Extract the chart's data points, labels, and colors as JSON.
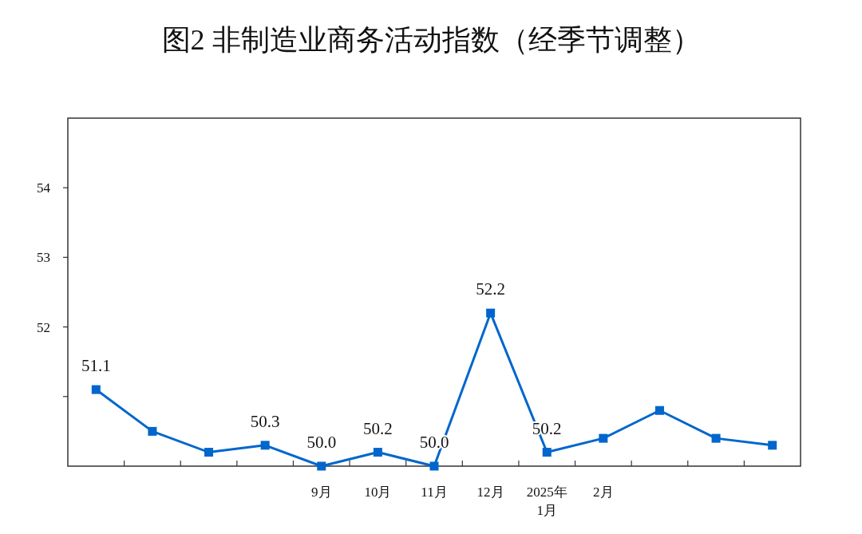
{
  "chart_data": {
    "type": "line",
    "title": "图2  非制造业商务活动指数（经季节调整）",
    "categories": [
      null,
      null,
      null,
      null,
      "9月",
      "10月",
      "11月",
      "12月",
      "2025年\n1月",
      "2月",
      null,
      null,
      null
    ],
    "values": [
      51.1,
      50.5,
      50.2,
      50.3,
      50.0,
      50.2,
      50.0,
      52.2,
      50.2,
      50.4,
      50.8,
      50.4,
      50.3
    ],
    "value_labels": [
      "51.1",
      null,
      null,
      "50.3",
      "50.0",
      "50.2",
      "50.0",
      "52.2",
      "50.2",
      null,
      null,
      null,
      null
    ],
    "color": "#0066cc",
    "marker": "square",
    "line_style": "solid",
    "ylim": [
      50,
      55
    ],
    "yticks": [
      {
        "value": 51,
        "label": null
      },
      52,
      53,
      54
    ]
  }
}
